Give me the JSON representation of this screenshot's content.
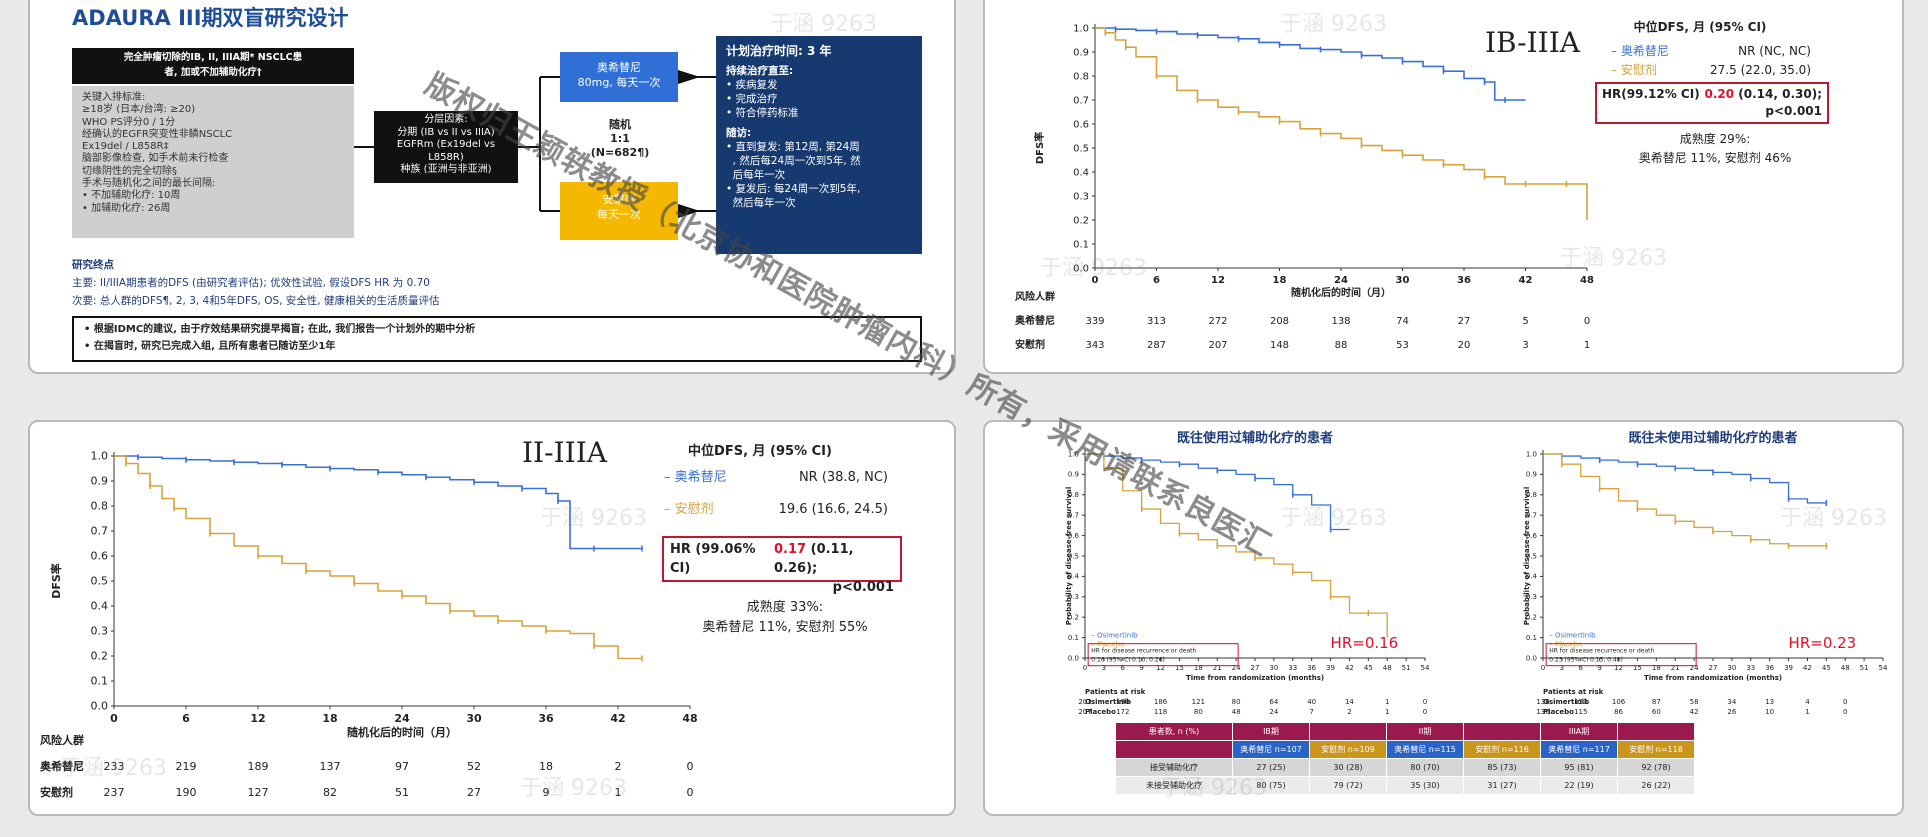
{
  "design": {
    "title": "ADAURA III期双盲研究设计",
    "population_head": [
      "完全肿瘤切除的IB, II, IIIA期* NSCLC患",
      "者, 加或不加辅助化疗†"
    ],
    "criteria": [
      "关键入排标准:",
      "≥18岁 (日本/台湾: ≥20)",
      "WHO PS评分0 / 1分",
      "经确认的EGFR突变性非鳞NSCLC",
      "Ex19del / L858R‡",
      "脑部影像检查, 如手术前未行检查",
      "切缘阴性的完全切除§",
      "手术与随机化之间的最长间隔:",
      "• 不加辅助化疗: 10周",
      "• 加辅助化疗: 26周"
    ],
    "stratification": [
      "分层因素:",
      "分期 (IB vs II vs IIIA)",
      "EGFRm (Ex19del vs",
      "L858R)",
      "种族 (亚洲与非亚洲)"
    ],
    "randomization": [
      "随机",
      "1:1",
      "(N=682¶)"
    ],
    "arm_a": [
      "奥希替尼",
      "80mg, 每天一次"
    ],
    "arm_b": [
      "安慰剂",
      "每天一次"
    ],
    "treatment_head": "计划治疗时间: 3 年",
    "continue_head": "持续治疗直至:",
    "continue_items": [
      "• 疾病复发",
      "• 完成治疗",
      "• 符合停药标准"
    ],
    "followup_head": "随访:",
    "followup_items": [
      "• 直到复发: 第12周, 第24周",
      "  , 然后每24周一次到5年, 然",
      "  后每年一次",
      "• 复发后: 每24周一次到5年,",
      "  然后每年一次"
    ],
    "endpoints_head": "研究终点",
    "primary": "主要: II/IIIA期患者的DFS (由研究者评估); 优效性试验, 假设DFS HR 为 0.70",
    "secondary": "次要: 总人群的DFS¶, 2, 3, 4和5年DFS, OS, 安全性, 健康相关的生活质量评估",
    "notes": [
      "• 根据IDMC的建议, 由于疗效结果研究提早揭盲; 在此, 我们报告一个计划外的期中分析",
      "• 在揭盲时, 研究已完成入组, 且所有患者已随访至少1年"
    ]
  },
  "watermark": {
    "diagonal": "版权归王颖轶教授（北京协和医院肿瘤内科）所有，采用请联系良医汇",
    "tag": "于涵 9263"
  },
  "chart_data": [
    {
      "type": "line",
      "title": "IB-IIIA",
      "xlabel": "随机化后的时间（月）",
      "ylabel": "DFS率",
      "xlim": [
        0,
        48
      ],
      "ylim": [
        0,
        1
      ],
      "xticks": [
        0,
        6,
        12,
        18,
        24,
        30,
        36,
        42,
        48
      ],
      "yticks": [
        0.0,
        0.1,
        0.2,
        0.3,
        0.4,
        0.5,
        0.6,
        0.7,
        0.8,
        0.9,
        1.0
      ],
      "series": [
        {
          "name": "奥希替尼",
          "color": "#3a6fd8",
          "x": [
            0,
            2,
            4,
            6,
            8,
            10,
            12,
            14,
            16,
            18,
            20,
            22,
            24,
            26,
            28,
            30,
            32,
            34,
            36,
            38,
            39,
            40,
            42
          ],
          "y": [
            1.0,
            0.995,
            0.99,
            0.985,
            0.975,
            0.97,
            0.96,
            0.955,
            0.94,
            0.93,
            0.915,
            0.91,
            0.9,
            0.885,
            0.875,
            0.86,
            0.84,
            0.82,
            0.79,
            0.775,
            0.7,
            0.7,
            0.7
          ]
        },
        {
          "name": "安慰剂",
          "color": "#d9a23a",
          "x": [
            0,
            1,
            2,
            3,
            4,
            6,
            8,
            10,
            12,
            14,
            16,
            18,
            20,
            22,
            24,
            26,
            28,
            30,
            32,
            34,
            36,
            38,
            40,
            42,
            44,
            46,
            48
          ],
          "y": [
            1.0,
            0.98,
            0.95,
            0.92,
            0.88,
            0.8,
            0.74,
            0.7,
            0.67,
            0.65,
            0.63,
            0.61,
            0.58,
            0.56,
            0.54,
            0.51,
            0.49,
            0.47,
            0.45,
            0.43,
            0.41,
            0.38,
            0.35,
            0.35,
            0.35,
            0.35,
            0.2
          ]
        }
      ],
      "legend_head": "中位DFS, 月 (95% CI)",
      "legend": [
        [
          "– 奥希替尼",
          "NR (NC, NC)"
        ],
        [
          "– 安慰剂",
          "27.5 (22.0, 35.0)"
        ]
      ],
      "hr_label": "HR(99.12% CI)",
      "hr_value": "0.20",
      "hr_ci": "(0.14, 0.30);",
      "hr_p": "p<0.001",
      "maturity": [
        "成熟度 29%:",
        "奥希替尼 11%, 安慰剂 46%"
      ],
      "risk_head": "风险人群",
      "risk": [
        [
          "奥希替尼",
          339,
          313,
          272,
          208,
          138,
          74,
          27,
          5,
          0
        ],
        [
          "安慰剂",
          343,
          287,
          207,
          148,
          88,
          53,
          20,
          3,
          1
        ]
      ]
    },
    {
      "type": "line",
      "title": "II-IIIA",
      "xlabel": "随机化后的时间（月）",
      "ylabel": "DFS率",
      "xlim": [
        0,
        48
      ],
      "ylim": [
        0,
        1
      ],
      "xticks": [
        0,
        6,
        12,
        18,
        24,
        30,
        36,
        42,
        48
      ],
      "yticks": [
        0.0,
        0.1,
        0.2,
        0.3,
        0.4,
        0.5,
        0.6,
        0.7,
        0.8,
        0.9,
        1.0
      ],
      "series": [
        {
          "name": "奥希替尼",
          "color": "#3a6fd8",
          "x": [
            0,
            2,
            4,
            6,
            8,
            10,
            12,
            14,
            16,
            18,
            20,
            22,
            24,
            26,
            28,
            30,
            32,
            34,
            36,
            37,
            38,
            40,
            42,
            44
          ],
          "y": [
            1.0,
            0.995,
            0.99,
            0.985,
            0.98,
            0.975,
            0.97,
            0.965,
            0.955,
            0.95,
            0.945,
            0.935,
            0.925,
            0.915,
            0.905,
            0.895,
            0.88,
            0.87,
            0.85,
            0.82,
            0.63,
            0.63,
            0.63,
            0.63
          ]
        },
        {
          "name": "安慰剂",
          "color": "#d9a23a",
          "x": [
            0,
            1,
            2,
            3,
            4,
            5,
            6,
            8,
            10,
            12,
            14,
            16,
            18,
            20,
            22,
            24,
            26,
            28,
            30,
            32,
            34,
            36,
            38,
            40,
            42,
            44
          ],
          "y": [
            1.0,
            0.97,
            0.93,
            0.88,
            0.83,
            0.79,
            0.75,
            0.69,
            0.64,
            0.6,
            0.57,
            0.54,
            0.52,
            0.49,
            0.46,
            0.44,
            0.41,
            0.38,
            0.36,
            0.34,
            0.32,
            0.3,
            0.29,
            0.24,
            0.19,
            0.19
          ]
        }
      ],
      "legend_head": "中位DFS, 月 (95% CI)",
      "legend": [
        [
          "– 奥希替尼",
          "NR (38.8, NC)"
        ],
        [
          "– 安慰剂",
          "19.6 (16.6, 24.5)"
        ]
      ],
      "hr_label": "HR (99.06% CI)",
      "hr_value": "0.17",
      "hr_ci": "(0.11, 0.26);",
      "hr_p": "p<0.001",
      "maturity": [
        "成熟度 33%:",
        "奥希替尼 11%, 安慰剂 55%"
      ],
      "risk_head": "风险人群",
      "risk": [
        [
          "奥希替尼",
          233,
          219,
          189,
          137,
          97,
          52,
          18,
          2,
          0
        ],
        [
          "安慰剂",
          237,
          190,
          127,
          82,
          51,
          27,
          9,
          1,
          0
        ]
      ]
    },
    {
      "type": "line",
      "title": "既往使用过辅助化疗的患者",
      "xlabel": "Time from randomization (months)",
      "ylabel": "Probability of disease-free survival",
      "xlim": [
        0,
        54
      ],
      "ylim": [
        0,
        1
      ],
      "xticks": [
        0,
        3,
        6,
        9,
        12,
        15,
        18,
        21,
        24,
        27,
        30,
        33,
        36,
        39,
        42,
        45,
        48,
        51,
        54
      ],
      "yticks": [
        0.0,
        0.1,
        0.2,
        0.3,
        0.4,
        0.5,
        0.6,
        0.7,
        0.8,
        0.9,
        1.0
      ],
      "series": [
        {
          "name": "Osimertinib",
          "color": "#3a6fd8",
          "x": [
            0,
            3,
            6,
            9,
            12,
            15,
            18,
            21,
            24,
            27,
            30,
            33,
            36,
            39,
            42
          ],
          "y": [
            1.0,
            0.99,
            0.98,
            0.97,
            0.96,
            0.95,
            0.93,
            0.92,
            0.9,
            0.88,
            0.85,
            0.8,
            0.75,
            0.63,
            0.63
          ]
        },
        {
          "name": "Placebo",
          "color": "#d9a23a",
          "x": [
            0,
            3,
            6,
            9,
            12,
            15,
            18,
            21,
            24,
            27,
            30,
            33,
            36,
            39,
            42,
            45,
            48
          ],
          "y": [
            1.0,
            0.93,
            0.82,
            0.73,
            0.66,
            0.61,
            0.58,
            0.55,
            0.52,
            0.49,
            0.46,
            0.42,
            0.38,
            0.3,
            0.22,
            0.22,
            0.1
          ]
        }
      ],
      "legend": [
        "– Osimertinib",
        "– Placebo"
      ],
      "hr_box": [
        "HR for disease recurrence or death",
        "0.16 (95% CI 0.10, 0.26)"
      ],
      "hr_text": "HR=0.16",
      "risk_head": "Patients at risk",
      "risk": [
        [
          "Osimertinib",
          "203",
          "190",
          "186",
          "121",
          "80",
          "64",
          "40",
          "14",
          "1",
          "0"
        ],
        [
          "Placebo",
          "207",
          "172",
          "118",
          "80",
          "48",
          "24",
          "7",
          "2",
          "1",
          "0"
        ]
      ]
    },
    {
      "type": "line",
      "title": "既往未使用过辅助化疗的患者",
      "xlabel": "Time from randomization (months)",
      "ylabel": "Probability of disease-free survival",
      "xlim": [
        0,
        54
      ],
      "ylim": [
        0,
        1
      ],
      "xticks": [
        0,
        3,
        6,
        9,
        12,
        15,
        18,
        21,
        24,
        27,
        30,
        33,
        36,
        39,
        42,
        45,
        48,
        51,
        54
      ],
      "yticks": [
        0.0,
        0.1,
        0.2,
        0.3,
        0.4,
        0.5,
        0.6,
        0.7,
        0.8,
        0.9,
        1.0
      ],
      "series": [
        {
          "name": "Osimertinib",
          "color": "#3a6fd8",
          "x": [
            0,
            3,
            6,
            9,
            12,
            15,
            18,
            21,
            24,
            27,
            30,
            33,
            36,
            39,
            42,
            45
          ],
          "y": [
            1.0,
            0.99,
            0.98,
            0.97,
            0.96,
            0.95,
            0.94,
            0.93,
            0.92,
            0.91,
            0.9,
            0.88,
            0.86,
            0.78,
            0.76,
            0.76
          ]
        },
        {
          "name": "Placebo",
          "color": "#d9a23a",
          "x": [
            0,
            3,
            6,
            9,
            12,
            15,
            18,
            21,
            24,
            27,
            30,
            33,
            36,
            39,
            42,
            45
          ],
          "y": [
            1.0,
            0.95,
            0.89,
            0.83,
            0.77,
            0.73,
            0.7,
            0.67,
            0.64,
            0.62,
            0.6,
            0.58,
            0.56,
            0.55,
            0.55,
            0.55
          ]
        }
      ],
      "legend": [
        "– Osimertinib",
        "– Placebo"
      ],
      "hr_box": [
        "HR for disease recurrence or death",
        "0.23 (95% CI 0.13, 0.40)"
      ],
      "hr_text": "HR=0.23",
      "risk_head": "Patients at risk",
      "risk": [
        [
          "Osimertinib",
          "136",
          "123",
          "106",
          "87",
          "58",
          "34",
          "13",
          "4",
          "0"
        ],
        [
          "Placebo",
          "136",
          "115",
          "86",
          "60",
          "42",
          "26",
          "10",
          "1",
          "0"
        ]
      ]
    }
  ],
  "subgroup_table": {
    "head": [
      "患者数, n (%)",
      "IB期",
      "",
      "II期",
      "",
      "IIIA期",
      ""
    ],
    "arms": [
      "",
      "奥希替尼 n=107",
      "安慰剂 n=109",
      "奥希替尼 n=115",
      "安慰剂 n=116",
      "奥希替尼 n=117",
      "安慰剂 n=118"
    ],
    "rows": [
      [
        "接受辅助化疗",
        "27 (25)",
        "30 (28)",
        "80 (70)",
        "85 (73)",
        "95 (81)",
        "92 (78)"
      ],
      [
        "未接受辅助化疗",
        "80 (75)",
        "79 (72)",
        "35 (30)",
        "31 (27)",
        "22 (19)",
        "26 (22)"
      ]
    ]
  },
  "colors": {
    "osimertinib": "#3a6fd8",
    "placebo": "#d9a23a",
    "hr_border": "#c0182e",
    "hr_red": "#e0102a",
    "navy": "#163a70"
  }
}
